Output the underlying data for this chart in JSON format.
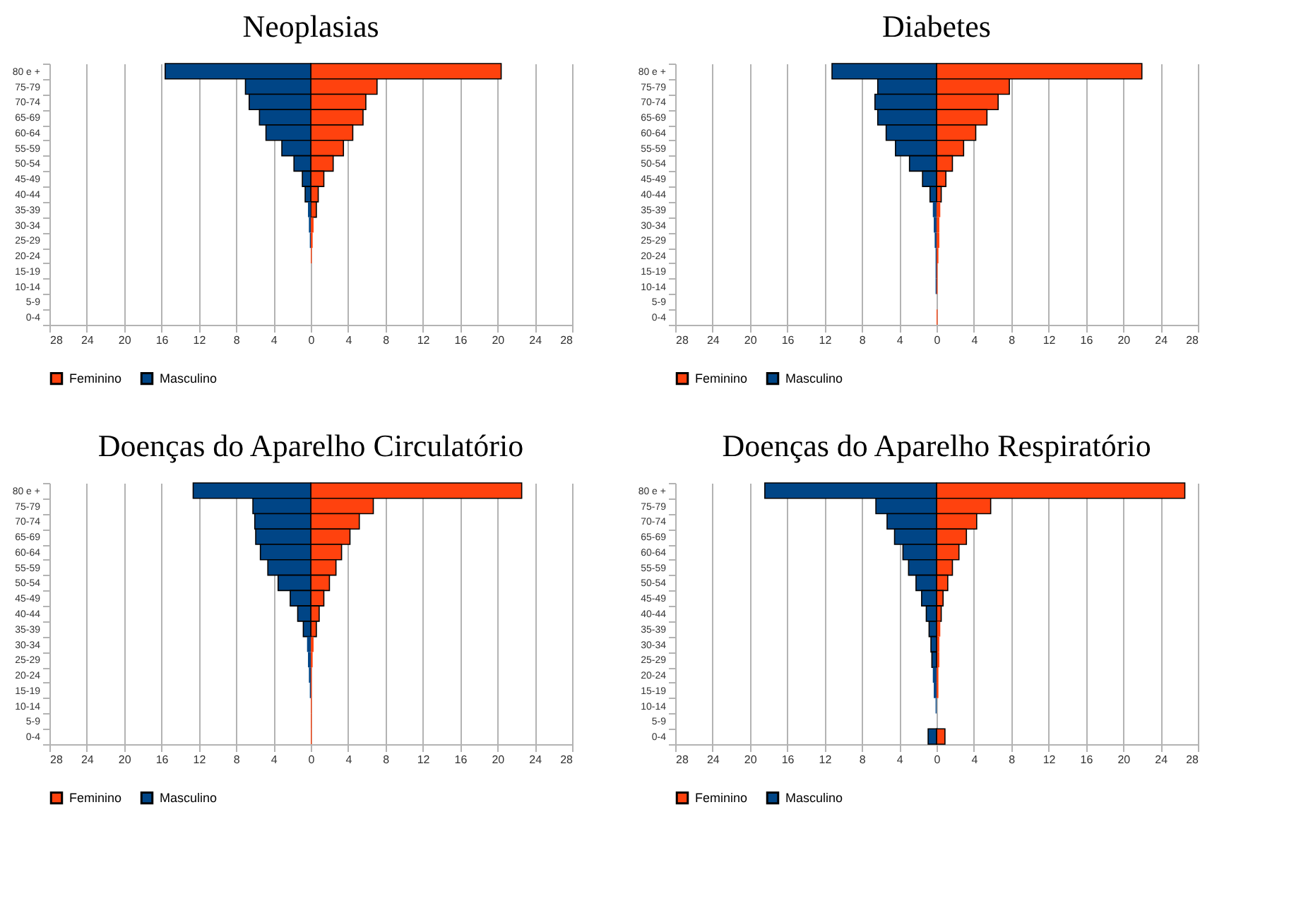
{
  "chart_data": [
    {
      "type": "bar",
      "orientation": "horizontal",
      "stacked": true,
      "title": "Neoplasias",
      "categories": [
        "80 e +",
        "75-79",
        "70-74",
        "65-69",
        "60-64",
        "55-59",
        "50-54",
        "45-49",
        "40-44",
        "35-39",
        "30-34",
        "25-29",
        "20-24",
        "15-19",
        "10-14",
        "5-9",
        "0-4"
      ],
      "series": [
        {
          "name": "Feminino",
          "color": "#ff420e",
          "values": [
            20.4,
            7.1,
            5.9,
            5.6,
            4.5,
            3.5,
            2.4,
            1.4,
            0.8,
            0.6,
            0.3,
            0.2,
            0.1,
            0,
            0,
            0,
            0
          ]
        },
        {
          "name": "Masculino",
          "color": "#004586",
          "values": [
            -15.6,
            -7.0,
            -6.6,
            -5.5,
            -4.8,
            -3.1,
            -1.8,
            -0.9,
            -0.6,
            -0.3,
            -0.2,
            -0.1,
            0,
            0,
            0,
            0,
            0
          ]
        }
      ],
      "xlim": [
        -28,
        28
      ],
      "xticks": [
        {
          "value": -28,
          "label": "28"
        },
        {
          "value": -24,
          "label": "24"
        },
        {
          "value": -20,
          "label": "20"
        },
        {
          "value": -16,
          "label": "16"
        },
        {
          "value": -12,
          "label": "12"
        },
        {
          "value": -8,
          "label": "8"
        },
        {
          "value": -4,
          "label": "4"
        },
        0,
        4,
        8,
        12,
        16,
        20,
        24,
        28
      ],
      "grid": "x",
      "legend": "bottom"
    },
    {
      "type": "bar",
      "orientation": "horizontal",
      "stacked": true,
      "title": "Diabetes",
      "categories": [
        "80 e +",
        "75-79",
        "70-74",
        "65-69",
        "60-64",
        "55-59",
        "50-54",
        "45-49",
        "40-44",
        "35-39",
        "30-34",
        "25-29",
        "20-24",
        "15-19",
        "10-14",
        "5-9",
        "0-4"
      ],
      "series": [
        {
          "name": "Feminino",
          "color": "#ff420e",
          "values": [
            22.0,
            7.8,
            6.6,
            5.4,
            4.2,
            2.9,
            1.7,
            1.0,
            0.5,
            0.4,
            0.3,
            0.3,
            0.2,
            0.1,
            0.1,
            0,
            0.1
          ]
        },
        {
          "name": "Masculino",
          "color": "#004586",
          "values": [
            -11.2,
            -6.3,
            -6.6,
            -6.3,
            -5.4,
            -4.4,
            -2.9,
            -1.5,
            -0.7,
            -0.4,
            -0.3,
            -0.2,
            -0.1,
            -0.1,
            -0.1,
            0,
            0
          ]
        }
      ],
      "xlim": [
        -28,
        28
      ],
      "xticks": [
        {
          "value": -28,
          "label": "28"
        },
        {
          "value": -24,
          "label": "24"
        },
        {
          "value": -20,
          "label": "20"
        },
        {
          "value": -16,
          "label": "16"
        },
        {
          "value": -12,
          "label": "12"
        },
        {
          "value": -8,
          "label": "8"
        },
        {
          "value": -4,
          "label": "4"
        },
        0,
        4,
        8,
        12,
        16,
        20,
        24,
        28
      ],
      "grid": "x",
      "legend": "bottom"
    },
    {
      "type": "bar",
      "orientation": "horizontal",
      "stacked": true,
      "title": "Doenças do Aparelho Circulatório",
      "categories": [
        "80 e +",
        "75-79",
        "70-74",
        "65-69",
        "60-64",
        "55-59",
        "50-54",
        "45-49",
        "40-44",
        "35-39",
        "30-34",
        "25-29",
        "20-24",
        "15-19",
        "10-14",
        "5-9",
        "0-4"
      ],
      "series": [
        {
          "name": "Feminino",
          "color": "#ff420e",
          "values": [
            22.6,
            6.7,
            5.2,
            4.2,
            3.3,
            2.7,
            2.0,
            1.4,
            0.9,
            0.6,
            0.3,
            0.2,
            0.1,
            0.1,
            0.1,
            0.1,
            0.1
          ]
        },
        {
          "name": "Masculino",
          "color": "#004586",
          "values": [
            -12.6,
            -6.2,
            -6.0,
            -5.9,
            -5.4,
            -4.6,
            -3.5,
            -2.2,
            -1.4,
            -0.8,
            -0.4,
            -0.3,
            -0.2,
            -0.1,
            0,
            0,
            0
          ]
        }
      ],
      "xlim": [
        -28,
        28
      ],
      "xticks": [
        {
          "value": -28,
          "label": "28"
        },
        {
          "value": -24,
          "label": "24"
        },
        {
          "value": -20,
          "label": "20"
        },
        {
          "value": -16,
          "label": "16"
        },
        {
          "value": -12,
          "label": "12"
        },
        {
          "value": -8,
          "label": "8"
        },
        {
          "value": -4,
          "label": "4"
        },
        0,
        4,
        8,
        12,
        16,
        20,
        24,
        28
      ],
      "grid": "x",
      "legend": "bottom"
    },
    {
      "type": "bar",
      "orientation": "horizontal",
      "stacked": true,
      "title": "Doenças do Aparelho Respiratório",
      "categories": [
        "80 e +",
        "75-79",
        "70-74",
        "65-69",
        "60-64",
        "55-59",
        "50-54",
        "45-49",
        "40-44",
        "35-39",
        "30-34",
        "25-29",
        "20-24",
        "15-19",
        "10-14",
        "5-9",
        "0-4"
      ],
      "series": [
        {
          "name": "Feminino",
          "color": "#ff420e",
          "values": [
            26.6,
            5.8,
            4.3,
            3.2,
            2.4,
            1.7,
            1.2,
            0.7,
            0.5,
            0.4,
            0.3,
            0.3,
            0.2,
            0.2,
            null,
            0,
            0.9
          ]
        },
        {
          "name": "Masculino",
          "color": "#004586",
          "values": [
            -18.4,
            -6.5,
            -5.3,
            -4.5,
            -3.6,
            -3.0,
            -2.2,
            -1.6,
            -1.1,
            -0.8,
            -0.6,
            -0.5,
            -0.4,
            -0.3,
            -0.1,
            0,
            -0.9
          ]
        }
      ],
      "xlim": [
        -28,
        28
      ],
      "xticks": [
        {
          "value": -28,
          "label": "28"
        },
        {
          "value": -24,
          "label": "24"
        },
        {
          "value": -20,
          "label": "20"
        },
        {
          "value": -16,
          "label": "16"
        },
        {
          "value": -12,
          "label": "12"
        },
        {
          "value": -8,
          "label": "8"
        },
        {
          "value": -4,
          "label": "4"
        },
        0,
        4,
        8,
        12,
        16,
        20,
        24,
        28
      ],
      "grid": "x",
      "legend": "bottom"
    }
  ]
}
